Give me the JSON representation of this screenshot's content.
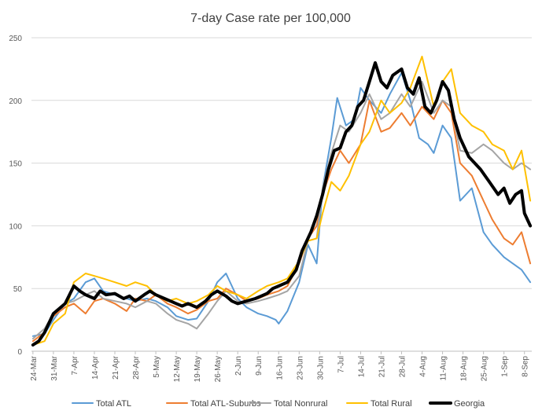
{
  "chart_data": {
    "type": "line",
    "title": "7-day Case rate per 100,000",
    "ylim": [
      0,
      250
    ],
    "yticks": [
      0,
      50,
      100,
      150,
      200,
      250
    ],
    "x_start": "24-Mar",
    "x_end": "10-Sep",
    "x_tick_labels": [
      "24-Mar",
      "31-Mar",
      "7-Apr",
      "14-Apr",
      "21-Apr",
      "28-Apr",
      "5-May",
      "12-May",
      "19-May",
      "26-May",
      "2-Jun",
      "9-Jun",
      "16-Jun",
      "23-Jun",
      "30-Jun",
      "7-Jul",
      "14-Jul",
      "21-Jul",
      "28-Jul",
      "4-Aug",
      "11-Aug",
      "18-Aug",
      "25-Aug",
      "1-Sep",
      "8-Sep"
    ],
    "grid": "horizontal",
    "legend_position": "bottom",
    "series": [
      {
        "name": "Total ATL",
        "color": "#5B9BD5",
        "width": 2,
        "points": [
          [
            "24-Mar",
            12
          ],
          [
            "28-Mar",
            14
          ],
          [
            "31-Mar",
            25
          ],
          [
            "4-Apr",
            38
          ],
          [
            "7-Apr",
            42
          ],
          [
            "11-Apr",
            55
          ],
          [
            "14-Apr",
            58
          ],
          [
            "17-Apr",
            48
          ],
          [
            "21-Apr",
            45
          ],
          [
            "25-Apr",
            42
          ],
          [
            "28-Apr",
            40
          ],
          [
            "2-May",
            42
          ],
          [
            "5-May",
            40
          ],
          [
            "9-May",
            35
          ],
          [
            "12-May",
            28
          ],
          [
            "16-May",
            25
          ],
          [
            "19-May",
            26
          ],
          [
            "23-May",
            40
          ],
          [
            "26-May",
            55
          ],
          [
            "29-May",
            62
          ],
          [
            "2-Jun",
            42
          ],
          [
            "5-Jun",
            35
          ],
          [
            "9-Jun",
            30
          ],
          [
            "12-Jun",
            28
          ],
          [
            "15-Jun",
            25
          ],
          [
            "16-Jun",
            22
          ],
          [
            "19-Jun",
            32
          ],
          [
            "23-Jun",
            55
          ],
          [
            "26-Jun",
            85
          ],
          [
            "29-Jun",
            70
          ],
          [
            "1-Jul",
            130
          ],
          [
            "4-Jul",
            170
          ],
          [
            "6-Jul",
            202
          ],
          [
            "9-Jul",
            180
          ],
          [
            "12-Jul",
            185
          ],
          [
            "14-Jul",
            210
          ],
          [
            "17-Jul",
            200
          ],
          [
            "21-Jul",
            190
          ],
          [
            "24-Jul",
            205
          ],
          [
            "28-Jul",
            222
          ],
          [
            "31-Jul",
            200
          ],
          [
            "3-Aug",
            170
          ],
          [
            "6-Aug",
            165
          ],
          [
            "8-Aug",
            158
          ],
          [
            "11-Aug",
            180
          ],
          [
            "14-Aug",
            170
          ],
          [
            "17-Aug",
            120
          ],
          [
            "21-Aug",
            130
          ],
          [
            "25-Aug",
            95
          ],
          [
            "28-Aug",
            85
          ],
          [
            "1-Sep",
            75
          ],
          [
            "4-Sep",
            70
          ],
          [
            "7-Sep",
            65
          ],
          [
            "10-Sep",
            55
          ]
        ]
      },
      {
        "name": "Total ATL-Suburbs",
        "color": "#ED7D31",
        "width": 2,
        "points": [
          [
            "24-Mar",
            8
          ],
          [
            "28-Mar",
            15
          ],
          [
            "31-Mar",
            28
          ],
          [
            "4-Apr",
            35
          ],
          [
            "7-Apr",
            38
          ],
          [
            "11-Apr",
            30
          ],
          [
            "14-Apr",
            40
          ],
          [
            "17-Apr",
            42
          ],
          [
            "21-Apr",
            38
          ],
          [
            "25-Apr",
            32
          ],
          [
            "28-Apr",
            42
          ],
          [
            "2-May",
            40
          ],
          [
            "5-May",
            45
          ],
          [
            "9-May",
            38
          ],
          [
            "12-May",
            35
          ],
          [
            "16-May",
            30
          ],
          [
            "19-May",
            33
          ],
          [
            "23-May",
            40
          ],
          [
            "26-May",
            42
          ],
          [
            "29-May",
            50
          ],
          [
            "2-Jun",
            45
          ],
          [
            "5-Jun",
            40
          ],
          [
            "9-Jun",
            42
          ],
          [
            "12-Jun",
            45
          ],
          [
            "16-Jun",
            48
          ],
          [
            "19-Jun",
            52
          ],
          [
            "23-Jun",
            70
          ],
          [
            "26-Jun",
            90
          ],
          [
            "29-Jun",
            100
          ],
          [
            "1-Jul",
            125
          ],
          [
            "4-Jul",
            145
          ],
          [
            "7-Jul",
            160
          ],
          [
            "10-Jul",
            150
          ],
          [
            "14-Jul",
            165
          ],
          [
            "17-Jul",
            200
          ],
          [
            "21-Jul",
            175
          ],
          [
            "24-Jul",
            178
          ],
          [
            "28-Jul",
            190
          ],
          [
            "31-Jul",
            180
          ],
          [
            "4-Aug",
            195
          ],
          [
            "8-Aug",
            185
          ],
          [
            "11-Aug",
            200
          ],
          [
            "14-Aug",
            190
          ],
          [
            "17-Aug",
            150
          ],
          [
            "21-Aug",
            140
          ],
          [
            "25-Aug",
            120
          ],
          [
            "28-Aug",
            105
          ],
          [
            "1-Sep",
            90
          ],
          [
            "4-Sep",
            85
          ],
          [
            "7-Sep",
            95
          ],
          [
            "10-Sep",
            70
          ]
        ]
      },
      {
        "name": "Total Nonrural",
        "color": "#A5A5A5",
        "width": 2,
        "points": [
          [
            "24-Mar",
            10
          ],
          [
            "28-Mar",
            18
          ],
          [
            "31-Mar",
            30
          ],
          [
            "4-Apr",
            38
          ],
          [
            "7-Apr",
            40
          ],
          [
            "11-Apr",
            45
          ],
          [
            "14-Apr",
            48
          ],
          [
            "17-Apr",
            42
          ],
          [
            "21-Apr",
            40
          ],
          [
            "25-Apr",
            38
          ],
          [
            "28-Apr",
            35
          ],
          [
            "2-May",
            40
          ],
          [
            "5-May",
            38
          ],
          [
            "9-May",
            30
          ],
          [
            "12-May",
            25
          ],
          [
            "16-May",
            22
          ],
          [
            "19-May",
            18
          ],
          [
            "23-May",
            30
          ],
          [
            "26-May",
            40
          ],
          [
            "29-May",
            48
          ],
          [
            "2-Jun",
            40
          ],
          [
            "5-Jun",
            38
          ],
          [
            "9-Jun",
            40
          ],
          [
            "12-Jun",
            42
          ],
          [
            "16-Jun",
            45
          ],
          [
            "19-Jun",
            48
          ],
          [
            "23-Jun",
            60
          ],
          [
            "26-Jun",
            88
          ],
          [
            "29-Jun",
            90
          ],
          [
            "1-Jul",
            130
          ],
          [
            "4-Jul",
            158
          ],
          [
            "7-Jul",
            180
          ],
          [
            "10-Jul",
            175
          ],
          [
            "14-Jul",
            190
          ],
          [
            "17-Jul",
            205
          ],
          [
            "21-Jul",
            185
          ],
          [
            "24-Jul",
            190
          ],
          [
            "28-Jul",
            205
          ],
          [
            "31-Jul",
            195
          ],
          [
            "4-Aug",
            215
          ],
          [
            "8-Aug",
            190
          ],
          [
            "11-Aug",
            200
          ],
          [
            "14-Aug",
            195
          ],
          [
            "17-Aug",
            160
          ],
          [
            "21-Aug",
            158
          ],
          [
            "25-Aug",
            165
          ],
          [
            "28-Aug",
            160
          ],
          [
            "1-Sep",
            150
          ],
          [
            "4-Sep",
            145
          ],
          [
            "7-Sep",
            150
          ],
          [
            "10-Sep",
            145
          ]
        ]
      },
      {
        "name": "Total Rural",
        "color": "#FFC000",
        "width": 2,
        "points": [
          [
            "24-Mar",
            5
          ],
          [
            "28-Mar",
            8
          ],
          [
            "31-Mar",
            22
          ],
          [
            "4-Apr",
            30
          ],
          [
            "7-Apr",
            55
          ],
          [
            "11-Apr",
            62
          ],
          [
            "14-Apr",
            60
          ],
          [
            "17-Apr",
            58
          ],
          [
            "21-Apr",
            55
          ],
          [
            "25-Apr",
            52
          ],
          [
            "28-Apr",
            55
          ],
          [
            "2-May",
            52
          ],
          [
            "5-May",
            45
          ],
          [
            "9-May",
            40
          ],
          [
            "12-May",
            42
          ],
          [
            "16-May",
            38
          ],
          [
            "19-May",
            40
          ],
          [
            "23-May",
            45
          ],
          [
            "26-May",
            52
          ],
          [
            "29-May",
            48
          ],
          [
            "2-Jun",
            45
          ],
          [
            "5-Jun",
            42
          ],
          [
            "9-Jun",
            48
          ],
          [
            "12-Jun",
            52
          ],
          [
            "16-Jun",
            55
          ],
          [
            "19-Jun",
            58
          ],
          [
            "23-Jun",
            72
          ],
          [
            "26-Jun",
            88
          ],
          [
            "29-Jun",
            90
          ],
          [
            "1-Jul",
            110
          ],
          [
            "4-Jul",
            135
          ],
          [
            "7-Jul",
            128
          ],
          [
            "10-Jul",
            140
          ],
          [
            "14-Jul",
            165
          ],
          [
            "17-Jul",
            175
          ],
          [
            "21-Jul",
            200
          ],
          [
            "24-Jul",
            190
          ],
          [
            "28-Jul",
            198
          ],
          [
            "31-Jul",
            210
          ],
          [
            "4-Aug",
            235
          ],
          [
            "8-Aug",
            195
          ],
          [
            "11-Aug",
            215
          ],
          [
            "14-Aug",
            225
          ],
          [
            "17-Aug",
            190
          ],
          [
            "21-Aug",
            180
          ],
          [
            "25-Aug",
            175
          ],
          [
            "28-Aug",
            165
          ],
          [
            "1-Sep",
            160
          ],
          [
            "4-Sep",
            145
          ],
          [
            "7-Sep",
            160
          ],
          [
            "10-Sep",
            120
          ]
        ]
      },
      {
        "name": "Georgia",
        "color": "#000000",
        "width": 4,
        "points": [
          [
            "24-Mar",
            5
          ],
          [
            "26-Mar",
            8
          ],
          [
            "28-Mar",
            15
          ],
          [
            "31-Mar",
            30
          ],
          [
            "4-Apr",
            38
          ],
          [
            "7-Apr",
            52
          ],
          [
            "9-Apr",
            48
          ],
          [
            "11-Apr",
            45
          ],
          [
            "14-Apr",
            42
          ],
          [
            "16-Apr",
            48
          ],
          [
            "18-Apr",
            45
          ],
          [
            "21-Apr",
            46
          ],
          [
            "24-Apr",
            42
          ],
          [
            "26-Apr",
            44
          ],
          [
            "28-Apr",
            40
          ],
          [
            "1-May",
            45
          ],
          [
            "3-May",
            48
          ],
          [
            "5-May",
            45
          ],
          [
            "8-May",
            42
          ],
          [
            "10-May",
            40
          ],
          [
            "12-May",
            38
          ],
          [
            "14-May",
            36
          ],
          [
            "16-May",
            38
          ],
          [
            "19-May",
            35
          ],
          [
            "22-May",
            40
          ],
          [
            "24-May",
            45
          ],
          [
            "26-May",
            48
          ],
          [
            "29-May",
            44
          ],
          [
            "31-May",
            40
          ],
          [
            "2-Jun",
            38
          ],
          [
            "5-Jun",
            40
          ],
          [
            "8-Jun",
            42
          ],
          [
            "10-Jun",
            44
          ],
          [
            "12-Jun",
            46
          ],
          [
            "14-Jun",
            50
          ],
          [
            "16-Jun",
            52
          ],
          [
            "19-Jun",
            55
          ],
          [
            "22-Jun",
            65
          ],
          [
            "24-Jun",
            80
          ],
          [
            "27-Jun",
            95
          ],
          [
            "29-Jun",
            108
          ],
          [
            "1-Jul",
            125
          ],
          [
            "3-Jul",
            145
          ],
          [
            "5-Jul",
            160
          ],
          [
            "7-Jul",
            162
          ],
          [
            "9-Jul",
            175
          ],
          [
            "11-Jul",
            180
          ],
          [
            "13-Jul",
            195
          ],
          [
            "15-Jul",
            200
          ],
          [
            "17-Jul",
            215
          ],
          [
            "19-Jul",
            230
          ],
          [
            "21-Jul",
            215
          ],
          [
            "23-Jul",
            210
          ],
          [
            "25-Jul",
            220
          ],
          [
            "28-Jul",
            225
          ],
          [
            "30-Jul",
            210
          ],
          [
            "1-Aug",
            205
          ],
          [
            "3-Aug",
            218
          ],
          [
            "5-Aug",
            195
          ],
          [
            "7-Aug",
            190
          ],
          [
            "9-Aug",
            200
          ],
          [
            "11-Aug",
            215
          ],
          [
            "13-Aug",
            208
          ],
          [
            "15-Aug",
            185
          ],
          [
            "17-Aug",
            170
          ],
          [
            "20-Aug",
            155
          ],
          [
            "22-Aug",
            150
          ],
          [
            "24-Aug",
            145
          ],
          [
            "27-Aug",
            135
          ],
          [
            "30-Aug",
            125
          ],
          [
            "1-Sep",
            130
          ],
          [
            "3-Sep",
            118
          ],
          [
            "5-Sep",
            125
          ],
          [
            "7-Sep",
            128
          ],
          [
            "8-Sep",
            110
          ],
          [
            "10-Sep",
            100
          ]
        ]
      }
    ]
  }
}
